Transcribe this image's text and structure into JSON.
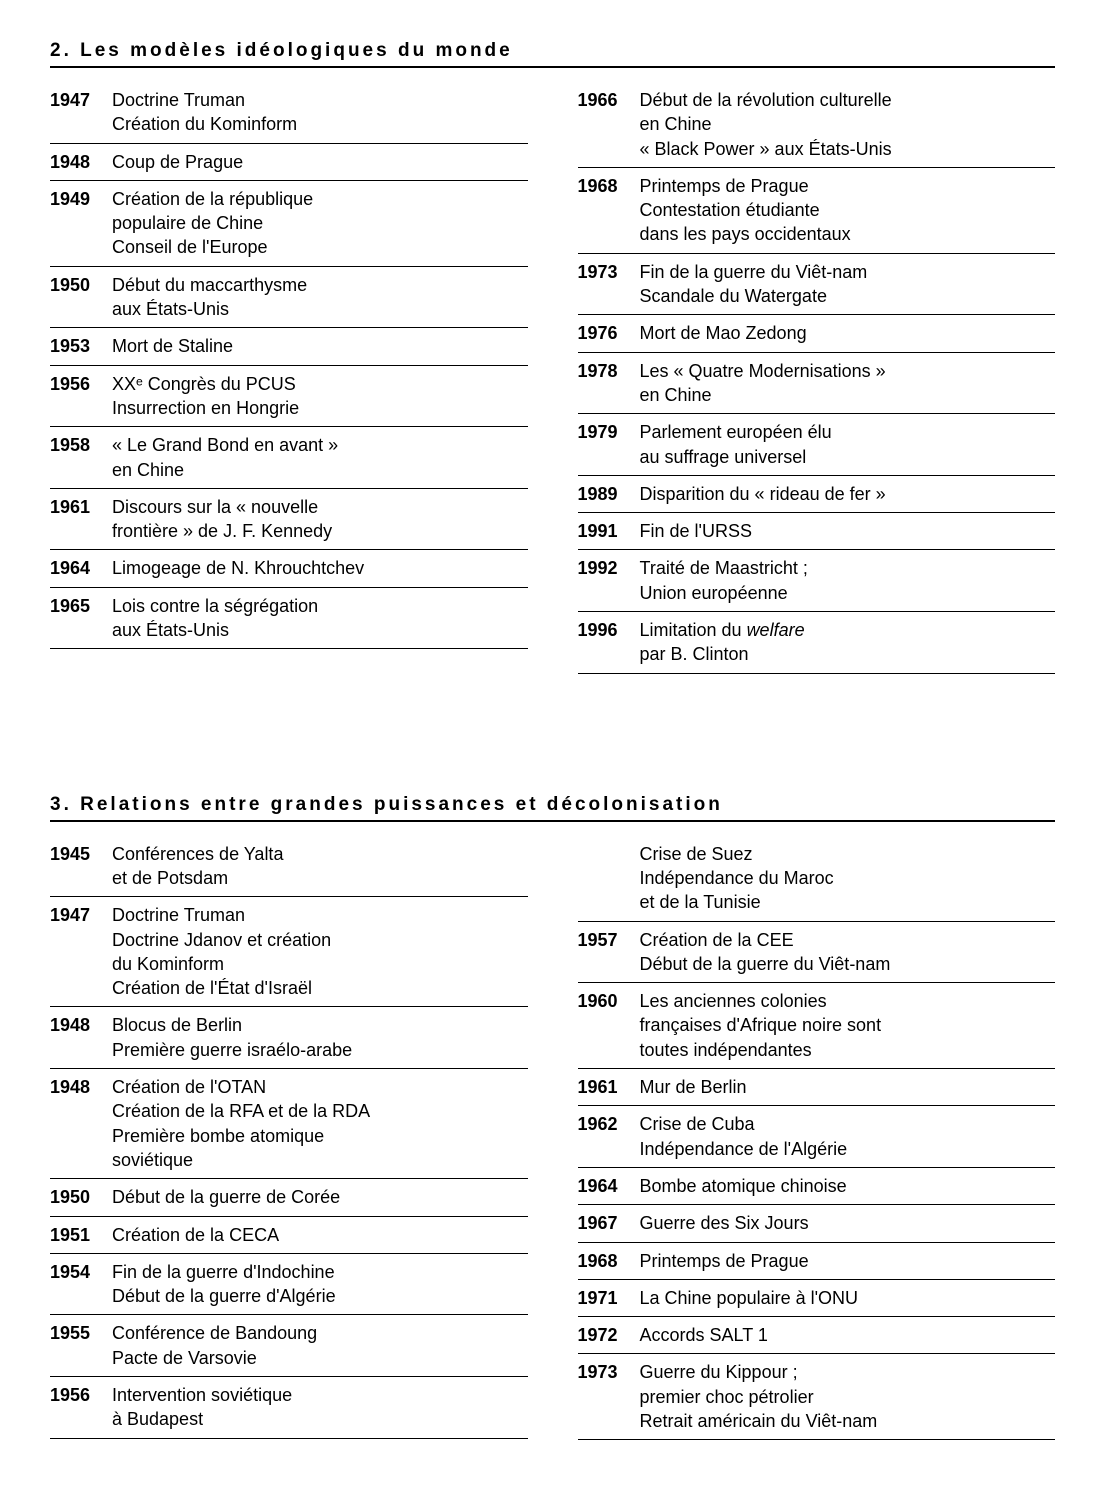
{
  "sections": [
    {
      "title": "2. Les modèles idéologiques du monde",
      "left": [
        {
          "year": "1947",
          "lines": [
            "Doctrine Truman",
            "Création du Kominform"
          ]
        },
        {
          "year": "1948",
          "lines": [
            "Coup de Prague"
          ]
        },
        {
          "year": "1949",
          "lines": [
            "Création de la république",
            "populaire de Chine",
            "Conseil de l'Europe"
          ]
        },
        {
          "year": "1950",
          "lines": [
            "Début du maccarthysme",
            "aux États-Unis"
          ]
        },
        {
          "year": "1953",
          "lines": [
            "Mort de Staline"
          ]
        },
        {
          "year": "1956",
          "lines": [
            "XXᵉ Congrès du PCUS",
            "Insurrection en Hongrie"
          ]
        },
        {
          "year": "1958",
          "lines": [
            "« Le Grand Bond en avant »",
            "en Chine"
          ]
        },
        {
          "year": "1961",
          "lines": [
            "Discours sur la « nouvelle",
            "frontière » de J. F. Kennedy"
          ]
        },
        {
          "year": "1964",
          "lines": [
            "Limogeage de N. Khrouchtchev"
          ]
        },
        {
          "year": "1965",
          "lines": [
            "Lois contre la ségrégation",
            "aux États-Unis"
          ]
        }
      ],
      "right": [
        {
          "year": "1966",
          "lines": [
            "Début de la révolution culturelle",
            "en Chine",
            "« Black Power » aux États-Unis"
          ]
        },
        {
          "year": "1968",
          "lines": [
            "Printemps de Prague",
            "Contestation étudiante",
            "dans les pays occidentaux"
          ]
        },
        {
          "year": "1973",
          "lines": [
            "Fin de la guerre du Viêt-nam",
            "Scandale du Watergate"
          ]
        },
        {
          "year": "1976",
          "lines": [
            "Mort de Mao Zedong"
          ]
        },
        {
          "year": "1978",
          "lines": [
            "Les « Quatre Modernisations »",
            "en Chine"
          ]
        },
        {
          "year": "1979",
          "lines": [
            "Parlement européen élu",
            "au suffrage universel"
          ]
        },
        {
          "year": "1989",
          "lines": [
            "Disparition du « rideau de fer »"
          ]
        },
        {
          "year": "1991",
          "lines": [
            "Fin de l'URSS"
          ]
        },
        {
          "year": "1992",
          "lines": [
            "Traité de Maastricht ;",
            "Union européenne"
          ]
        },
        {
          "year": "1996",
          "lines": [
            "Limitation du <em class='italic'>welfare</em>",
            "par B. Clinton"
          ]
        }
      ]
    },
    {
      "title": "3. Relations entre grandes puissances et décolonisation",
      "left": [
        {
          "year": "1945",
          "lines": [
            "Conférences de Yalta",
            "et de Potsdam"
          ]
        },
        {
          "year": "1947",
          "lines": [
            "Doctrine Truman",
            "Doctrine Jdanov et création",
            "du Kominform",
            "Création de l'État d'Israël"
          ]
        },
        {
          "year": "1948",
          "lines": [
            "Blocus de Berlin",
            "Première guerre israélo-arabe"
          ]
        },
        {
          "year": "1948",
          "lines": [
            "Création de l'OTAN",
            "Création de la RFA et de la RDA",
            "Première bombe atomique",
            "soviétique"
          ]
        },
        {
          "year": "1950",
          "lines": [
            "Début de la guerre de Corée"
          ]
        },
        {
          "year": "1951",
          "lines": [
            "Création de la CECA"
          ]
        },
        {
          "year": "1954",
          "lines": [
            "Fin de la guerre d'Indochine",
            "Début de la guerre d'Algérie"
          ]
        },
        {
          "year": "1955",
          "lines": [
            "Conférence de Bandoung",
            "Pacte de Varsovie"
          ]
        },
        {
          "year": "1956",
          "lines": [
            "Intervention soviétique",
            "à Budapest"
          ]
        }
      ],
      "right": [
        {
          "year": "",
          "lines": [
            "Crise de Suez",
            "Indépendance du Maroc",
            "et de la Tunisie"
          ]
        },
        {
          "year": "1957",
          "lines": [
            "Création de la CEE",
            "Début de la guerre du Viêt-nam"
          ]
        },
        {
          "year": "1960",
          "lines": [
            "Les anciennes colonies",
            "françaises d'Afrique noire sont",
            "toutes indépendantes"
          ]
        },
        {
          "year": "1961",
          "lines": [
            "Mur de Berlin"
          ]
        },
        {
          "year": "1962",
          "lines": [
            "Crise de Cuba",
            "Indépendance de l'Algérie"
          ]
        },
        {
          "year": "1964",
          "lines": [
            "Bombe atomique chinoise"
          ]
        },
        {
          "year": "1967",
          "lines": [
            "Guerre des Six Jours"
          ]
        },
        {
          "year": "1968",
          "lines": [
            "Printemps de Prague"
          ]
        },
        {
          "year": "1971",
          "lines": [
            "La Chine populaire à l'ONU"
          ]
        },
        {
          "year": "1972",
          "lines": [
            "Accords SALT 1"
          ]
        },
        {
          "year": "1973",
          "lines": [
            "Guerre du Kippour ;",
            "premier choc pétrolier",
            "Retrait américain du Viêt-nam"
          ]
        }
      ]
    }
  ]
}
